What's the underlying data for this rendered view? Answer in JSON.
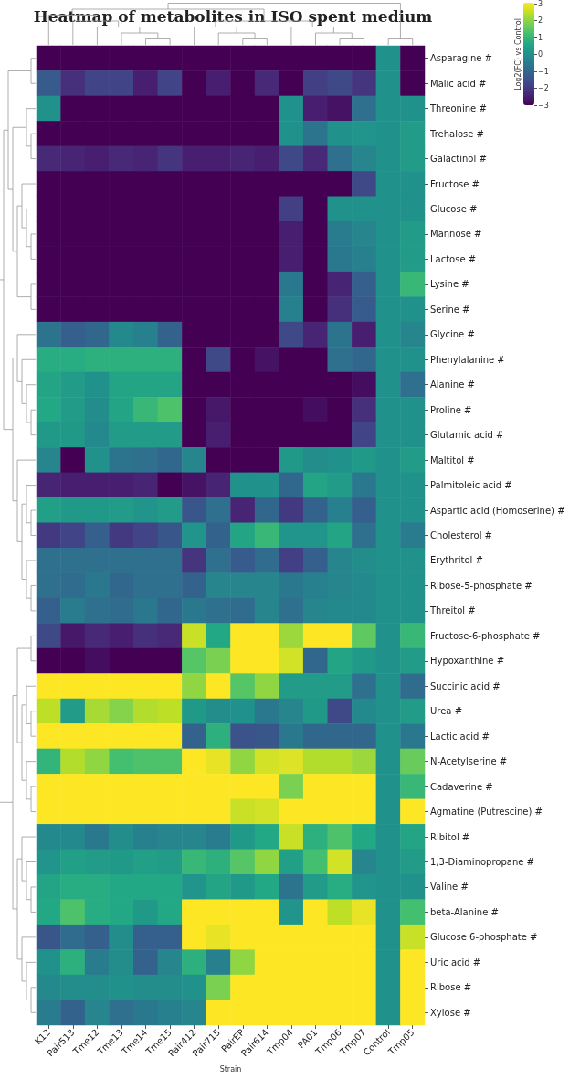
{
  "chart_data": {
    "type": "heatmap",
    "title": "Heatmap of metabolites in ISO spent medium",
    "xlabel": "Strain",
    "clabel": "Log2(FC) vs Control",
    "categories": [
      "K12",
      "Pair513",
      "Tme12",
      "Tme13",
      "Tme14",
      "Tme15",
      "Pair412",
      "Pair715",
      "PairEP",
      "Pair614",
      "Tmp04",
      "PA01",
      "Tmp06",
      "Tmp07",
      "Control",
      "Tmp05"
    ],
    "y_categories": [
      "Asparagine #",
      "Malic acid #",
      "Threonine #",
      "Trehalose #",
      "Galactinol #",
      "Fructose #",
      "Glucose #",
      "Mannose #",
      "Lactose #",
      "Lysine #",
      "Serine #",
      "Glycine #",
      "Phenylalanine #",
      "Alanine #",
      "Proline #",
      "Glutamic acid #",
      "Maltitol #",
      "Palmitoleic acid #",
      "Aspartic acid (Homoserine) #",
      "Cholesterol #",
      "Erythritol #",
      "Ribose-5-phosphate #",
      "Threitol #",
      "Fructose-6-phosphate #",
      "Hypoxanthine #",
      "Succinic acid #",
      "Urea #",
      "Lactic acid #",
      "N-Acetylserine #",
      "Cadaverine #",
      "Agmatine (Putrescine) #",
      "Ribitol #",
      "1,3-Diaminopropane #",
      "Valine #",
      "beta-Alanine #",
      "Glucose 6-phosphate #",
      "Uric acid #",
      "Ribose #",
      "Xylose #"
    ],
    "cells": [
      [
        -3,
        -3,
        -3,
        -3,
        -3,
        -3,
        -3,
        -3,
        -3,
        -3,
        -3,
        -3,
        -3,
        -3,
        0,
        -3
      ],
      [
        -1.3,
        -2.2,
        -1.8,
        -1.8,
        -2.5,
        -1.8,
        -3,
        -2.5,
        -3,
        -2.3,
        -3,
        -1.9,
        -1.7,
        -2.1,
        0,
        -3
      ],
      [
        0,
        -3,
        -3,
        -3,
        -3,
        -3,
        -3,
        -3,
        -3,
        -3,
        0,
        -2.5,
        -2.7,
        -0.8,
        0,
        0
      ],
      [
        -3,
        -3,
        -3,
        -3,
        -3,
        -3,
        -3,
        -3,
        -3,
        -3,
        0,
        -0.7,
        0,
        0.1,
        0,
        0.3
      ],
      [
        -2.3,
        -2.4,
        -2.5,
        -2.3,
        -2.4,
        -2.1,
        -2.5,
        -2.5,
        -2.4,
        -2.5,
        -1.7,
        -2.3,
        -0.8,
        -0.3,
        0,
        0.3
      ],
      [
        -3,
        -3,
        -3,
        -3,
        -3,
        -3,
        -3,
        -3,
        -3,
        -3,
        -3,
        -3,
        -3,
        -1.7,
        0,
        0
      ],
      [
        -3,
        -3,
        -3,
        -3,
        -3,
        -3,
        -3,
        -3,
        -3,
        -3,
        -1.9,
        -3,
        0,
        0,
        0,
        0
      ],
      [
        -3,
        -3,
        -3,
        -3,
        -3,
        -3,
        -3,
        -3,
        -3,
        -3,
        -2.5,
        -3,
        -0.5,
        -0.3,
        0,
        0.3
      ],
      [
        -3,
        -3,
        -3,
        -3,
        -3,
        -3,
        -3,
        -3,
        -3,
        -3,
        -2.5,
        -3,
        -0.6,
        -0.4,
        0,
        0.3
      ],
      [
        -3,
        -3,
        -3,
        -3,
        -3,
        -3,
        -3,
        -3,
        -3,
        -3,
        -0.6,
        -3,
        -2.4,
        -1.2,
        0,
        1
      ],
      [
        -3,
        -3,
        -3,
        -3,
        -3,
        -3,
        -3,
        -3,
        -3,
        -3,
        -0.4,
        -3,
        -2.2,
        -1.3,
        0,
        0
      ],
      [
        -0.7,
        -1.2,
        -1,
        -0.2,
        -0.4,
        -1.1,
        -3,
        -3,
        -3,
        -3,
        -1.7,
        -2.4,
        -0.7,
        -2.5,
        0,
        -0.3
      ],
      [
        0.7,
        0.7,
        0.8,
        0.8,
        0.8,
        0.8,
        -3,
        -1.7,
        -3,
        -2.7,
        -3,
        -3,
        -0.8,
        -1,
        0,
        0
      ],
      [
        0.5,
        0.3,
        0,
        0.5,
        0.5,
        0.5,
        -3,
        -3,
        -3,
        -3,
        -3,
        -3,
        -3,
        -2.8,
        0,
        -0.8
      ],
      [
        0.6,
        0.3,
        -0.1,
        0.5,
        1,
        1.3,
        -3,
        -2.6,
        -3,
        -3,
        -3,
        -2.8,
        -3,
        -2.2,
        0,
        0
      ],
      [
        0.2,
        0.2,
        -0.2,
        0.3,
        0.3,
        0.3,
        -3,
        -2.5,
        -3,
        -3,
        -3,
        -3,
        -3,
        -1.8,
        0,
        0
      ],
      [
        -0.3,
        -3,
        0,
        -0.7,
        -0.8,
        -1,
        -0.3,
        -3,
        -3,
        -3,
        0.2,
        -0.1,
        0,
        0.2,
        0,
        0.3
      ],
      [
        -2.4,
        -2.5,
        -2.5,
        -2.5,
        -2.4,
        -3,
        -2.7,
        -2.4,
        0,
        0,
        -1,
        0.5,
        0.3,
        -0.6,
        0,
        0
      ],
      [
        0.4,
        0.2,
        0.2,
        0.3,
        0.1,
        0.3,
        -1.4,
        -0.8,
        -2.4,
        -1,
        -2,
        -1.1,
        -0.4,
        -1.2,
        0,
        0
      ],
      [
        -2,
        -1.8,
        -1.2,
        -2,
        -1.8,
        -1.4,
        0.1,
        -1.1,
        0.5,
        1,
        0.1,
        0.1,
        0.5,
        -0.8,
        0,
        -0.5
      ],
      [
        -0.8,
        -0.8,
        -0.8,
        -0.8,
        -0.8,
        -0.8,
        -2.1,
        -0.8,
        -1.3,
        -0.9,
        -1.9,
        -1.2,
        -0.3,
        -0.1,
        0,
        0
      ],
      [
        -0.8,
        -0.9,
        -0.6,
        -1,
        -0.8,
        -0.8,
        -1.1,
        -0.3,
        -0.3,
        -0.3,
        -0.6,
        -0.4,
        -0.3,
        -0.2,
        0,
        0
      ],
      [
        -1.2,
        -0.5,
        -0.8,
        -0.9,
        -0.6,
        -1,
        -0.6,
        -0.8,
        -0.9,
        -0.3,
        -0.8,
        -0.3,
        -0.2,
        -0.2,
        0,
        0
      ],
      [
        -1.7,
        -2.6,
        -2.3,
        -2.5,
        -2.2,
        -2.3,
        2.5,
        0.6,
        3,
        3,
        2.1,
        3,
        3,
        1.5,
        0,
        1
      ],
      [
        -3,
        -3,
        -2.8,
        -3,
        -3,
        -3,
        1.4,
        1.8,
        3,
        3,
        2.6,
        -1,
        0.5,
        0.2,
        0,
        0.3
      ],
      [
        3,
        3,
        3,
        3,
        3,
        3,
        2,
        3,
        1.4,
        2,
        0.3,
        0.3,
        0.3,
        -0.8,
        0,
        -0.9
      ],
      [
        2.4,
        0.3,
        2.2,
        1.9,
        2.3,
        2.4,
        0.2,
        -0.1,
        0,
        -0.6,
        -0.3,
        0.2,
        -1.7,
        -0.2,
        0,
        0.3
      ],
      [
        3,
        3,
        3,
        3,
        3,
        3,
        -1.1,
        0.8,
        -1.5,
        -1.4,
        -0.6,
        -1,
        -1,
        -1,
        0,
        -0.6
      ],
      [
        0.9,
        2.3,
        2,
        1.2,
        1.3,
        1.3,
        3,
        2.8,
        2,
        2.6,
        2.7,
        2.3,
        2.3,
        2.1,
        0,
        1.6
      ],
      [
        3,
        3,
        3,
        3,
        3,
        3,
        3,
        3,
        3,
        3,
        1.8,
        3,
        3,
        3,
        0,
        1
      ],
      [
        3,
        3,
        3,
        3,
        3,
        3,
        3,
        3,
        2.5,
        2.6,
        3,
        3,
        3,
        3,
        0,
        3
      ],
      [
        -0.2,
        -0.2,
        -0.6,
        -0.1,
        -0.4,
        -0.3,
        -0.3,
        -0.5,
        0.2,
        0.6,
        2.5,
        0.8,
        1.3,
        0.6,
        0,
        0.5
      ],
      [
        0.1,
        0.4,
        0.3,
        0.2,
        0.4,
        0.3,
        1,
        0.8,
        1.4,
        2,
        0.4,
        1.2,
        2.6,
        -0.3,
        0,
        0.3
      ],
      [
        0.5,
        0.7,
        0.7,
        0.6,
        0.6,
        0.6,
        0.1,
        0.5,
        0.2,
        0.6,
        -0.7,
        0.3,
        0.7,
        0.1,
        0,
        0
      ],
      [
        0.6,
        1.3,
        0.7,
        0.6,
        0.2,
        0.6,
        3,
        3,
        3,
        3,
        0.1,
        3,
        2.4,
        2.8,
        0,
        1.2
      ],
      [
        -1.4,
        -0.9,
        -1.2,
        -0.1,
        -1.2,
        -1.2,
        3,
        2.8,
        3,
        3,
        3,
        3,
        3,
        3,
        0,
        2.5
      ],
      [
        0,
        0.8,
        -0.5,
        -0.1,
        -1.1,
        -0.3,
        0.8,
        -0.4,
        2,
        3,
        3,
        3,
        3,
        3,
        0,
        3
      ],
      [
        -0.2,
        -0.1,
        -0.1,
        0,
        -0.1,
        -0.1,
        0,
        1.8,
        3,
        3,
        3,
        3,
        3,
        3,
        0,
        3
      ],
      [
        -0.5,
        -1.1,
        -0.3,
        -0.8,
        -0.6,
        -0.4,
        -0.3,
        3,
        3,
        3,
        3,
        3,
        3,
        3,
        0,
        3
      ]
    ],
    "clim": [
      -3,
      3
    ],
    "cticks": [
      {
        "value": -3,
        "label": "−3"
      },
      {
        "value": -2,
        "label": "−2"
      },
      {
        "value": -1,
        "label": "−1"
      },
      0,
      1,
      2,
      3
    ]
  }
}
